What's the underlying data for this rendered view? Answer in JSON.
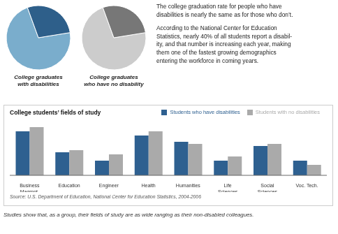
{
  "chart_data": [
    {
      "type": "pie",
      "title": "College graduates\nwith disabilities",
      "values": [
        0.72,
        0.28
      ],
      "colors": [
        "#7aadcc",
        "#2e5f8a"
      ]
    },
    {
      "type": "pie",
      "title": "College graduates\nwho have no disability",
      "values": [
        0.72,
        0.28
      ],
      "colors": [
        "#cccccc",
        "#777777"
      ]
    },
    {
      "type": "bar",
      "title": "College students’ fields of study",
      "categories": [
        "Business\nMagmnt.",
        "Education",
        "Engineer",
        "Health",
        "Humanities",
        "Life\nSciences",
        "Social\nSciences",
        "Voc. Tech."
      ],
      "series": [
        {
          "name": "Students who have disabilities",
          "color": "#2e6090",
          "values": [
            21,
            11,
            7,
            19,
            16,
            7,
            14,
            7
          ]
        },
        {
          "name": "Students with no disabilities",
          "color": "#aaaaaa",
          "values": [
            23,
            12,
            10,
            21,
            15,
            9,
            15,
            5
          ]
        }
      ],
      "ylim": [
        0,
        28
      ],
      "tick_labels": "x",
      "legend": "upper right",
      "annotations": [
        "The college graduation rate for people who have\ndisabilities is nearly the same as for those who don’t.",
        "According to the National Center for Education\nStatistics, nearly 40% of all students report a disabil-\nity, and that number is increasing each year, making\nthem one of the fastest growing demographics\nentering the workforce in coming years.",
        "Source: U.S. Department of Education, National Center for Education Statistics, 2004-2006",
        "Studies show that, as a group, their fields of study are as wide ranging as their non-disabled colleagues."
      ]
    }
  ]
}
